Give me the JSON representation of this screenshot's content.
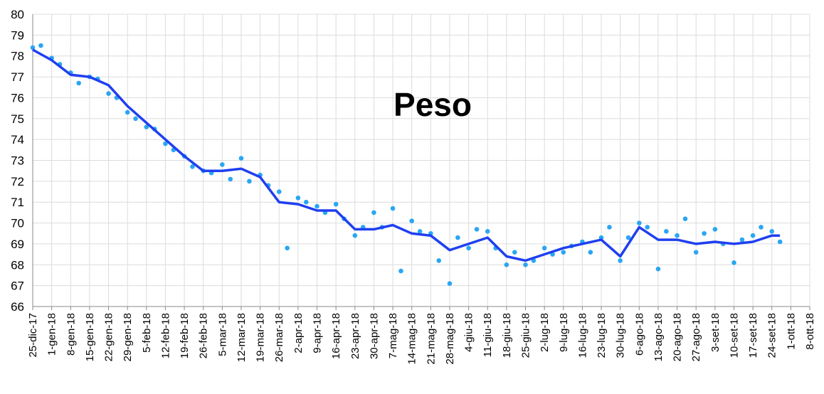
{
  "chart_data": {
    "type": "scatter-line",
    "title": "Peso",
    "xlim": [
      "2017-12-25",
      "2018-10-08"
    ],
    "xticks": [
      {
        "value": "2017-12-25",
        "label": "25-dic-17"
      },
      {
        "value": "2018-01-01",
        "label": "1-gen-18"
      },
      {
        "value": "2018-01-08",
        "label": "8-gen-18"
      },
      {
        "value": "2018-01-15",
        "label": "15-gen-18"
      },
      {
        "value": "2018-01-22",
        "label": "22-gen-18"
      },
      {
        "value": "2018-01-29",
        "label": "29-gen-18"
      },
      {
        "value": "2018-02-05",
        "label": "5-feb-18"
      },
      {
        "value": "2018-02-12",
        "label": "12-feb-18"
      },
      {
        "value": "2018-02-19",
        "label": "19-feb-18"
      },
      {
        "value": "2018-02-26",
        "label": "26-feb-18"
      },
      {
        "value": "2018-03-05",
        "label": "5-mar-18"
      },
      {
        "value": "2018-03-12",
        "label": "12-mar-18"
      },
      {
        "value": "2018-03-19",
        "label": "19-mar-18"
      },
      {
        "value": "2018-03-26",
        "label": "26-mar-18"
      },
      {
        "value": "2018-04-02",
        "label": "2-apr-18"
      },
      {
        "value": "2018-04-09",
        "label": "9-apr-18"
      },
      {
        "value": "2018-04-16",
        "label": "16-apr-18"
      },
      {
        "value": "2018-04-23",
        "label": "23-apr-18"
      },
      {
        "value": "2018-04-30",
        "label": "30-apr-18"
      },
      {
        "value": "2018-05-07",
        "label": "7-mag-18"
      },
      {
        "value": "2018-05-14",
        "label": "14-mag-18"
      },
      {
        "value": "2018-05-21",
        "label": "21-mag-18"
      },
      {
        "value": "2018-05-28",
        "label": "28-mag-18"
      },
      {
        "value": "2018-06-04",
        "label": "4-giu-18"
      },
      {
        "value": "2018-06-11",
        "label": "11-giu-18"
      },
      {
        "value": "2018-06-18",
        "label": "18-giu-18"
      },
      {
        "value": "2018-06-25",
        "label": "25-giu-18"
      },
      {
        "value": "2018-07-02",
        "label": "2-lug-18"
      },
      {
        "value": "2018-07-09",
        "label": "9-lug-18"
      },
      {
        "value": "2018-07-16",
        "label": "16-lug-18"
      },
      {
        "value": "2018-07-23",
        "label": "23-lug-18"
      },
      {
        "value": "2018-07-30",
        "label": "30-lug-18"
      },
      {
        "value": "2018-08-06",
        "label": "6-ago-18"
      },
      {
        "value": "2018-08-13",
        "label": "13-ago-18"
      },
      {
        "value": "2018-08-20",
        "label": "20-ago-18"
      },
      {
        "value": "2018-08-27",
        "label": "27-ago-18"
      },
      {
        "value": "2018-09-03",
        "label": "3-set-18"
      },
      {
        "value": "2018-09-10",
        "label": "10-set-18"
      },
      {
        "value": "2018-09-17",
        "label": "17-set-18"
      },
      {
        "value": "2018-09-24",
        "label": "24-set-18"
      },
      {
        "value": "2018-10-01",
        "label": "1-ott-18"
      },
      {
        "value": "2018-10-08",
        "label": "8-ott-18"
      }
    ],
    "ylim": [
      66,
      80
    ],
    "yticks": [
      66,
      67,
      68,
      69,
      70,
      71,
      72,
      73,
      74,
      75,
      76,
      77,
      78,
      79,
      80
    ],
    "grid": true,
    "scatter": {
      "color": "#2aa6f2",
      "x": [
        "2017-12-25",
        "2017-12-28",
        "2018-01-01",
        "2018-01-04",
        "2018-01-08",
        "2018-01-11",
        "2018-01-15",
        "2018-01-18",
        "2018-01-22",
        "2018-01-25",
        "2018-01-29",
        "2018-02-01",
        "2018-02-05",
        "2018-02-08",
        "2018-02-12",
        "2018-02-15",
        "2018-02-19",
        "2018-02-22",
        "2018-02-26",
        "2018-03-01",
        "2018-03-05",
        "2018-03-08",
        "2018-03-12",
        "2018-03-15",
        "2018-03-19",
        "2018-03-22",
        "2018-03-26",
        "2018-03-29",
        "2018-04-02",
        "2018-04-05",
        "2018-04-09",
        "2018-04-12",
        "2018-04-16",
        "2018-04-19",
        "2018-04-23",
        "2018-04-26",
        "2018-04-30",
        "2018-05-03",
        "2018-05-07",
        "2018-05-10",
        "2018-05-14",
        "2018-05-17",
        "2018-05-21",
        "2018-05-24",
        "2018-05-28",
        "2018-05-31",
        "2018-06-04",
        "2018-06-07",
        "2018-06-11",
        "2018-06-14",
        "2018-06-18",
        "2018-06-21",
        "2018-06-25",
        "2018-06-28",
        "2018-07-02",
        "2018-07-05",
        "2018-07-09",
        "2018-07-12",
        "2018-07-16",
        "2018-07-19",
        "2018-07-23",
        "2018-07-26",
        "2018-07-30",
        "2018-08-02",
        "2018-08-06",
        "2018-08-09",
        "2018-08-13",
        "2018-08-16",
        "2018-08-20",
        "2018-08-23",
        "2018-08-27",
        "2018-08-30",
        "2018-09-03",
        "2018-09-06",
        "2018-09-10",
        "2018-09-13",
        "2018-09-17",
        "2018-09-20",
        "2018-09-24",
        "2018-09-27"
      ],
      "values": [
        78.4,
        78.5,
        77.9,
        77.6,
        77.2,
        76.7,
        77.0,
        76.9,
        76.2,
        76.0,
        75.3,
        75.0,
        74.6,
        74.5,
        73.8,
        73.5,
        73.2,
        72.7,
        72.5,
        72.4,
        72.8,
        72.1,
        73.1,
        72.0,
        72.3,
        71.8,
        71.5,
        68.8,
        71.2,
        71.0,
        70.8,
        70.5,
        70.9,
        70.2,
        69.4,
        69.8,
        70.5,
        69.8,
        70.7,
        67.7,
        70.1,
        69.6,
        69.5,
        68.2,
        67.1,
        69.3,
        68.8,
        69.7,
        69.6,
        68.8,
        68.0,
        68.6,
        68.0,
        68.2,
        68.8,
        68.5,
        68.6,
        68.9,
        69.1,
        68.6,
        69.3,
        69.8,
        68.2,
        69.3,
        70.0,
        69.8,
        67.8,
        69.6,
        69.4,
        70.2,
        68.6,
        69.5,
        69.7,
        69.0,
        68.1,
        69.2,
        69.4,
        69.8,
        69.6,
        69.1
      ]
    },
    "line": {
      "color": "#1f3ff0",
      "x": [
        "2017-12-25",
        "2018-01-01",
        "2018-01-08",
        "2018-01-15",
        "2018-01-22",
        "2018-01-29",
        "2018-02-05",
        "2018-02-12",
        "2018-02-19",
        "2018-02-26",
        "2018-03-05",
        "2018-03-12",
        "2018-03-19",
        "2018-03-26",
        "2018-04-02",
        "2018-04-09",
        "2018-04-16",
        "2018-04-23",
        "2018-04-30",
        "2018-05-07",
        "2018-05-14",
        "2018-05-21",
        "2018-05-28",
        "2018-06-04",
        "2018-06-11",
        "2018-06-18",
        "2018-06-25",
        "2018-07-02",
        "2018-07-09",
        "2018-07-16",
        "2018-07-23",
        "2018-07-30",
        "2018-08-06",
        "2018-08-13",
        "2018-08-20",
        "2018-08-27",
        "2018-09-03",
        "2018-09-10",
        "2018-09-17",
        "2018-09-24",
        "2018-09-27"
      ],
      "values": [
        78.3,
        77.8,
        77.1,
        77.0,
        76.6,
        75.6,
        74.8,
        74.0,
        73.2,
        72.5,
        72.5,
        72.6,
        72.2,
        71.0,
        70.9,
        70.6,
        70.6,
        69.7,
        69.7,
        69.9,
        69.5,
        69.4,
        68.7,
        69.0,
        69.3,
        68.4,
        68.2,
        68.5,
        68.8,
        69.0,
        69.2,
        68.4,
        69.8,
        69.2,
        69.2,
        69.0,
        69.1,
        69.0,
        69.1,
        69.4,
        69.4
      ]
    }
  }
}
